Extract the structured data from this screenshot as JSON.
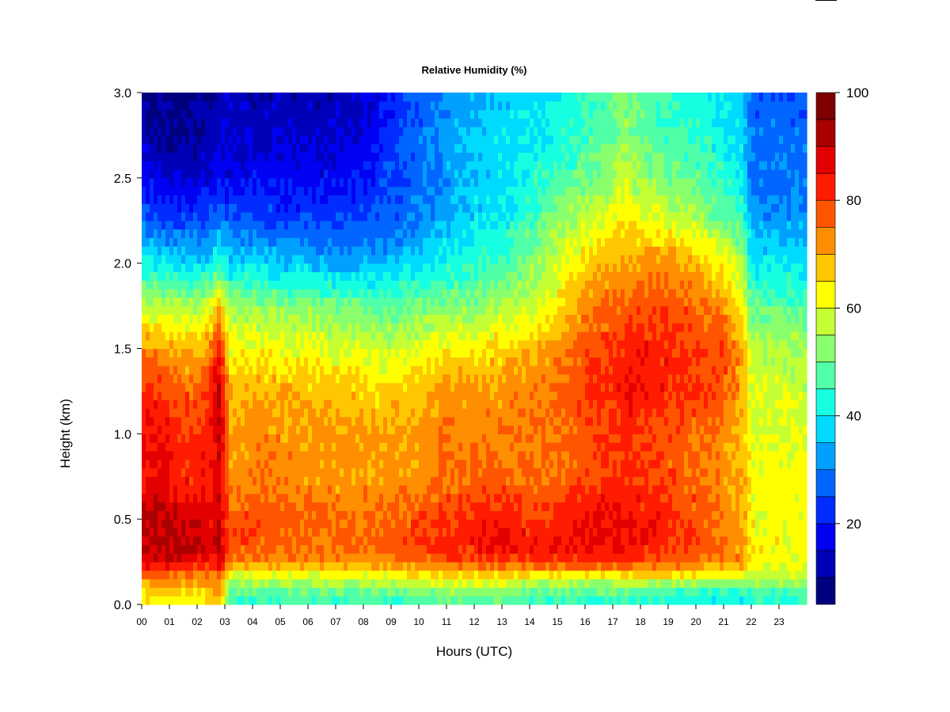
{
  "chart_data": {
    "type": "heatmap",
    "title": "Relative Humidity (%)",
    "xlabel": "Hours (UTC)",
    "ylabel": "Height (km)",
    "xlim": [
      0,
      24
    ],
    "ylim": [
      0.0,
      3.0
    ],
    "x_ticks": [
      "00",
      "01",
      "02",
      "03",
      "04",
      "05",
      "06",
      "07",
      "08",
      "09",
      "10",
      "11",
      "12",
      "13",
      "14",
      "15",
      "16",
      "17",
      "18",
      "19",
      "20",
      "21",
      "22",
      "23"
    ],
    "y_ticks": [
      "0.0",
      "0.5",
      "1.0",
      "1.5",
      "2.0",
      "2.5",
      "3.0"
    ],
    "colorbar": {
      "range": [
        5,
        100
      ],
      "ticks": [
        "20",
        "40",
        "60",
        "80",
        "100"
      ],
      "colors": [
        "#00007F",
        "#0000B8",
        "#0000F2",
        "#002CFF",
        "#0066FF",
        "#00A0FF",
        "#00DAFF",
        "#16FFE1",
        "#50FFA7",
        "#8AFF6D",
        "#C4FF33",
        "#FFFF00",
        "#FFC700",
        "#FF8E00",
        "#FF5500",
        "#FF1C00",
        "#E20000",
        "#AA0000",
        "#7F0000"
      ]
    },
    "x_hours": [
      0,
      0.5,
      1,
      1.5,
      2,
      2.5,
      2.8,
      3.2,
      4,
      5,
      6,
      7,
      8,
      9,
      10,
      11,
      12,
      13,
      14,
      15,
      16,
      17,
      17.3,
      18,
      19,
      20,
      21,
      21.7,
      22,
      23,
      24
    ],
    "y_heights": [
      0.05,
      0.15,
      0.25,
      0.35,
      0.5,
      0.75,
      1.0,
      1.25,
      1.5,
      1.75,
      2.0,
      2.25,
      2.5,
      2.75,
      3.0
    ],
    "z_values": [
      [
        64,
        64,
        64,
        62,
        62,
        66,
        70,
        46,
        46,
        46,
        46,
        47,
        47,
        47,
        48,
        50,
        50,
        49,
        47,
        46,
        45,
        45,
        46,
        44,
        43,
        43,
        42,
        42,
        44,
        44,
        44
      ],
      [
        74,
        74,
        74,
        72,
        72,
        72,
        76,
        55,
        58,
        58,
        58,
        58,
        58,
        58,
        60,
        62,
        62,
        62,
        60,
        58,
        58,
        58,
        60,
        60,
        60,
        58,
        56,
        56,
        56,
        56,
        56
      ],
      [
        86,
        88,
        88,
        86,
        85,
        84,
        86,
        72,
        72,
        72,
        72,
        72,
        72,
        74,
        76,
        78,
        78,
        80,
        80,
        80,
        82,
        82,
        82,
        80,
        78,
        76,
        72,
        72,
        64,
        62,
        62
      ],
      [
        92,
        93,
        93,
        92,
        90,
        88,
        90,
        80,
        78,
        77,
        76,
        76,
        76,
        78,
        80,
        84,
        84,
        86,
        84,
        84,
        86,
        86,
        86,
        84,
        82,
        80,
        74,
        72,
        64,
        62,
        62
      ],
      [
        90,
        91,
        91,
        88,
        88,
        86,
        90,
        78,
        78,
        77,
        76,
        74,
        74,
        76,
        78,
        80,
        82,
        84,
        80,
        82,
        84,
        86,
        86,
        84,
        82,
        78,
        74,
        70,
        62,
        62,
        62
      ],
      [
        84,
        86,
        85,
        82,
        82,
        84,
        88,
        72,
        74,
        74,
        72,
        72,
        72,
        72,
        72,
        74,
        76,
        76,
        74,
        76,
        78,
        80,
        82,
        80,
        78,
        76,
        72,
        70,
        62,
        62,
        62
      ],
      [
        84,
        86,
        84,
        80,
        80,
        84,
        92,
        70,
        72,
        72,
        72,
        72,
        72,
        70,
        72,
        74,
        74,
        74,
        74,
        76,
        78,
        80,
        82,
        80,
        78,
        76,
        72,
        68,
        60,
        60,
        60
      ],
      [
        82,
        82,
        80,
        78,
        76,
        82,
        92,
        68,
        70,
        70,
        68,
        68,
        66,
        66,
        68,
        72,
        72,
        72,
        74,
        76,
        80,
        82,
        84,
        84,
        82,
        80,
        78,
        70,
        60,
        58,
        58
      ],
      [
        72,
        72,
        70,
        68,
        68,
        74,
        84,
        62,
        62,
        62,
        62,
        60,
        60,
        58,
        60,
        64,
        64,
        66,
        68,
        72,
        78,
        80,
        82,
        84,
        82,
        80,
        78,
        70,
        56,
        56,
        56
      ],
      [
        56,
        56,
        56,
        56,
        56,
        60,
        68,
        54,
        54,
        52,
        52,
        50,
        50,
        48,
        50,
        52,
        52,
        56,
        58,
        64,
        72,
        76,
        76,
        78,
        78,
        76,
        72,
        62,
        48,
        48,
        48
      ],
      [
        42,
        40,
        38,
        36,
        36,
        40,
        44,
        38,
        38,
        36,
        36,
        34,
        34,
        36,
        38,
        42,
        44,
        46,
        52,
        58,
        66,
        70,
        70,
        72,
        72,
        68,
        62,
        56,
        40,
        40,
        40
      ],
      [
        28,
        26,
        24,
        24,
        24,
        26,
        28,
        26,
        26,
        24,
        24,
        24,
        24,
        26,
        30,
        34,
        38,
        40,
        46,
        52,
        58,
        62,
        66,
        62,
        60,
        56,
        50,
        46,
        32,
        32,
        32
      ],
      [
        18,
        16,
        14,
        14,
        14,
        16,
        18,
        18,
        18,
        18,
        18,
        18,
        20,
        24,
        28,
        32,
        36,
        38,
        42,
        46,
        50,
        54,
        58,
        54,
        50,
        48,
        44,
        40,
        28,
        28,
        28
      ],
      [
        12,
        10,
        10,
        10,
        10,
        12,
        14,
        14,
        14,
        14,
        14,
        14,
        16,
        22,
        28,
        32,
        36,
        38,
        40,
        42,
        46,
        50,
        54,
        50,
        46,
        44,
        40,
        38,
        28,
        28,
        28
      ],
      [
        10,
        8,
        8,
        8,
        8,
        10,
        12,
        12,
        12,
        12,
        12,
        12,
        14,
        20,
        26,
        30,
        34,
        36,
        38,
        40,
        44,
        48,
        52,
        48,
        44,
        42,
        38,
        36,
        26,
        26,
        26
      ]
    ]
  }
}
